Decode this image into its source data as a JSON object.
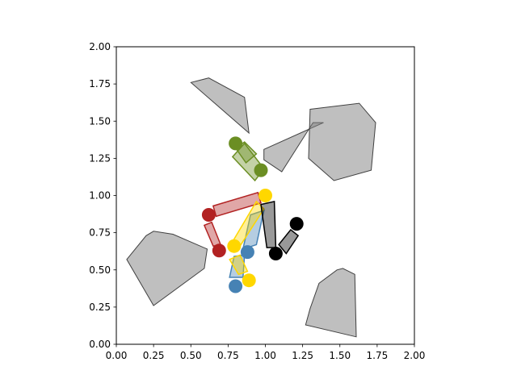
{
  "chart_data": {
    "type": "scatter",
    "title": "",
    "xlabel": "",
    "ylabel": "",
    "xlim": [
      0,
      2
    ],
    "ylim": [
      0,
      2
    ],
    "aspect": "equal",
    "grid": false,
    "x_ticks": [
      "0.00",
      "0.25",
      "0.50",
      "0.75",
      "1.00",
      "1.25",
      "1.50",
      "1.75",
      "2.00"
    ],
    "y_ticks": [
      "0.00",
      "0.25",
      "0.50",
      "0.75",
      "1.00",
      "1.25",
      "1.50",
      "1.75",
      "2.00"
    ],
    "obstacles": [
      {
        "name": "obstacle-top",
        "fill": "#808080",
        "stroke": "#404040",
        "points": [
          [
            0.5,
            1.76
          ],
          [
            0.62,
            1.79
          ],
          [
            0.86,
            1.66
          ],
          [
            0.89,
            1.42
          ]
        ]
      },
      {
        "name": "obstacle-middle-thin",
        "fill": "#808080",
        "stroke": "#404040",
        "points": [
          [
            0.99,
            1.24
          ],
          [
            1.11,
            1.16
          ],
          [
            1.32,
            1.49
          ],
          [
            1.39,
            1.49
          ],
          [
            0.99,
            1.31
          ]
        ]
      },
      {
        "name": "obstacle-right-large",
        "fill": "#808080",
        "stroke": "#404040",
        "points": [
          [
            1.3,
            1.58
          ],
          [
            1.63,
            1.62
          ],
          [
            1.74,
            1.49
          ],
          [
            1.71,
            1.17
          ],
          [
            1.46,
            1.1
          ],
          [
            1.29,
            1.25
          ]
        ]
      },
      {
        "name": "obstacle-left",
        "fill": "#808080",
        "stroke": "#404040",
        "points": [
          [
            0.07,
            0.57
          ],
          [
            0.2,
            0.73
          ],
          [
            0.25,
            0.76
          ],
          [
            0.38,
            0.74
          ],
          [
            0.61,
            0.64
          ],
          [
            0.59,
            0.51
          ],
          [
            0.25,
            0.26
          ]
        ]
      },
      {
        "name": "obstacle-bottom-right",
        "fill": "#808080",
        "stroke": "#404040",
        "points": [
          [
            1.36,
            0.41
          ],
          [
            1.48,
            0.5
          ],
          [
            1.52,
            0.51
          ],
          [
            1.6,
            0.47
          ],
          [
            1.61,
            0.05
          ],
          [
            1.27,
            0.13
          ],
          [
            1.3,
            0.24
          ]
        ]
      }
    ],
    "rectangles": [
      {
        "name": "green",
        "fill": "#6b8e23",
        "stroke": "#6b8e23",
        "points": [
          [
            0.78,
            1.26
          ],
          [
            0.93,
            1.1
          ],
          [
            0.99,
            1.18
          ],
          [
            0.86,
            1.35
          ]
        ]
      },
      {
        "name": "green-inner",
        "fill": "#6b8e23",
        "stroke": "#6b8e23",
        "points": [
          [
            0.8,
            1.32
          ],
          [
            0.87,
            1.22
          ],
          [
            0.94,
            1.28
          ],
          [
            0.86,
            1.36
          ]
        ]
      },
      {
        "name": "red-long",
        "fill": "#b22222",
        "stroke": "#b22222",
        "points": [
          [
            0.65,
            0.93
          ],
          [
            0.95,
            1.02
          ],
          [
            0.97,
            0.95
          ],
          [
            0.67,
            0.86
          ]
        ]
      },
      {
        "name": "red-small",
        "fill": "#b22222",
        "stroke": "#b22222",
        "points": [
          [
            0.59,
            0.8
          ],
          [
            0.65,
            0.66
          ],
          [
            0.7,
            0.67
          ],
          [
            0.64,
            0.82
          ]
        ]
      },
      {
        "name": "blue-upper",
        "fill": "#4682b4",
        "stroke": "#4682b4",
        "points": [
          [
            0.85,
            0.64
          ],
          [
            0.94,
            0.67
          ],
          [
            0.99,
            0.9
          ],
          [
            0.9,
            0.87
          ]
        ]
      },
      {
        "name": "yellow-upper",
        "fill": "#ffd700",
        "stroke": "#ffd700",
        "points": [
          [
            0.78,
            0.69
          ],
          [
            0.83,
            0.66
          ],
          [
            0.99,
            0.91
          ],
          [
            0.94,
            0.96
          ]
        ]
      },
      {
        "name": "blue-lower",
        "fill": "#4682b4",
        "stroke": "#4682b4",
        "points": [
          [
            0.76,
            0.45
          ],
          [
            0.85,
            0.45
          ],
          [
            0.86,
            0.6
          ],
          [
            0.79,
            0.59
          ]
        ]
      },
      {
        "name": "yellow-lower",
        "fill": "#ffd700",
        "stroke": "#ffd700",
        "points": [
          [
            0.76,
            0.57
          ],
          [
            0.83,
            0.6
          ],
          [
            0.88,
            0.49
          ],
          [
            0.82,
            0.47
          ]
        ]
      },
      {
        "name": "black-tall",
        "fill": "#000000",
        "stroke": "#000000",
        "points": [
          [
            0.97,
            0.94
          ],
          [
            1.06,
            0.96
          ],
          [
            1.07,
            0.65
          ],
          [
            1.01,
            0.65
          ]
        ]
      },
      {
        "name": "black-small",
        "fill": "#000000",
        "stroke": "#000000",
        "points": [
          [
            1.09,
            0.67
          ],
          [
            1.14,
            0.61
          ],
          [
            1.22,
            0.73
          ],
          [
            1.17,
            0.77
          ]
        ]
      }
    ],
    "points": [
      {
        "name": "green-top",
        "color": "#6b8e23",
        "x": 0.8,
        "y": 1.35
      },
      {
        "name": "green-right",
        "color": "#6b8e23",
        "x": 0.97,
        "y": 1.17
      },
      {
        "name": "yellow-top",
        "color": "#ffd700",
        "x": 1.0,
        "y": 1.0
      },
      {
        "name": "red-left",
        "color": "#b22222",
        "x": 0.62,
        "y": 0.87
      },
      {
        "name": "red-bottom",
        "color": "#b22222",
        "x": 0.69,
        "y": 0.63
      },
      {
        "name": "yellow-middle",
        "color": "#ffd700",
        "x": 0.79,
        "y": 0.66
      },
      {
        "name": "blue-middle",
        "color": "#4682b4",
        "x": 0.88,
        "y": 0.62
      },
      {
        "name": "black-right",
        "color": "#000000",
        "x": 1.21,
        "y": 0.81
      },
      {
        "name": "black-bottom",
        "color": "#000000",
        "x": 1.07,
        "y": 0.61
      },
      {
        "name": "yellow-bottom",
        "color": "#ffd700",
        "x": 0.89,
        "y": 0.43
      },
      {
        "name": "blue-bottom",
        "color": "#4682b4",
        "x": 0.8,
        "y": 0.39
      }
    ]
  }
}
